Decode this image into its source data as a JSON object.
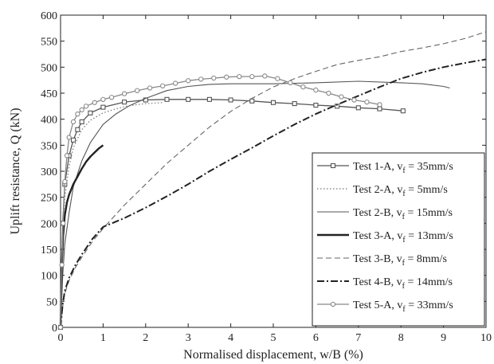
{
  "chart_data": {
    "type": "line",
    "title": "",
    "xlabel": "Normalised displacement, w/B (%)",
    "ylabel": "Uplift resistance, Q (kN)",
    "xlim": [
      0,
      10
    ],
    "ylim": [
      0,
      600
    ],
    "xticks": [
      0,
      1,
      2,
      3,
      4,
      5,
      6,
      7,
      8,
      9,
      10
    ],
    "yticks": [
      0,
      50,
      100,
      150,
      200,
      250,
      300,
      350,
      400,
      450,
      500,
      550,
      600
    ],
    "grid": false,
    "legend_position": "bottom-right",
    "series": [
      {
        "name": "Test 1-A, v",
        "sub": "f",
        "rest": " = 35mm/s",
        "style": "solid-square",
        "color": "#555555",
        "x": [
          0,
          0.05,
          0.1,
          0.2,
          0.3,
          0.4,
          0.5,
          0.7,
          1.0,
          1.5,
          2.0,
          2.5,
          3.0,
          3.5,
          4.0,
          4.5,
          5.0,
          5.5,
          6.0,
          6.5,
          7.0,
          7.5,
          8.05
        ],
        "y": [
          0,
          200,
          275,
          330,
          360,
          380,
          395,
          412,
          423,
          433,
          437,
          438,
          438,
          438,
          437,
          435,
          432,
          430,
          427,
          425,
          422,
          420,
          416
        ]
      },
      {
        "name": "Test 2-A, v",
        "sub": "f",
        "rest": " = 5mm/s",
        "style": "dotted",
        "color": "#777777",
        "x": [
          0,
          0.05,
          0.1,
          0.2,
          0.3,
          0.5,
          0.7,
          1.0,
          1.3,
          1.6,
          2.0,
          2.4
        ],
        "y": [
          0,
          170,
          250,
          310,
          345,
          380,
          398,
          412,
          420,
          426,
          430,
          432
        ]
      },
      {
        "name": "Test 2-B, v",
        "sub": "f",
        "rest": " = 15mm/s",
        "style": "solid-thin",
        "color": "#555555",
        "x": [
          0,
          0.05,
          0.1,
          0.2,
          0.3,
          0.5,
          0.7,
          1.0,
          1.3,
          1.6,
          2.0,
          2.5,
          3.0,
          3.5,
          4.0,
          5.0,
          6.0,
          7.0,
          8.0,
          8.5,
          9.0,
          9.15
        ],
        "y": [
          0,
          100,
          160,
          220,
          270,
          320,
          355,
          390,
          410,
          425,
          440,
          455,
          463,
          467,
          468,
          468,
          470,
          473,
          470,
          468,
          463,
          460
        ]
      },
      {
        "name": "Test 3-A, v",
        "sub": "f",
        "rest": " = 13mm/s",
        "style": "solid-thick",
        "color": "#222222",
        "x": [
          0,
          0.03,
          0.06,
          0.1,
          0.15,
          0.2,
          0.3,
          0.4,
          0.5,
          0.6,
          0.7,
          0.8,
          0.9,
          1.0
        ],
        "y": [
          0,
          120,
          175,
          215,
          240,
          255,
          275,
          290,
          305,
          318,
          328,
          336,
          344,
          350
        ]
      },
      {
        "name": "Test 3-B, v",
        "sub": "f",
        "rest": " = 8mm/s",
        "style": "dashed",
        "color": "#666666",
        "x": [
          0,
          0.05,
          0.1,
          0.2,
          0.35,
          0.5,
          0.75,
          1.0,
          1.5,
          2.0,
          2.5,
          3.0,
          3.5,
          4.0,
          4.5,
          5.0,
          5.5,
          6.0,
          6.5,
          7.0,
          7.5,
          8.0,
          8.5,
          9.0,
          9.5,
          10.0
        ],
        "y": [
          0,
          40,
          65,
          90,
          115,
          135,
          165,
          190,
          235,
          275,
          315,
          350,
          385,
          415,
          440,
          462,
          478,
          492,
          505,
          513,
          520,
          530,
          537,
          545,
          555,
          568
        ]
      },
      {
        "name": "Test 4-B, v",
        "sub": "f",
        "rest": " = 14mm/s",
        "style": "dash-dot",
        "color": "#222222",
        "x": [
          0,
          0.05,
          0.1,
          0.2,
          0.35,
          0.5,
          0.75,
          1.0,
          1.5,
          2.0,
          2.5,
          3.0,
          3.5,
          4.0,
          4.5,
          5.0,
          5.5,
          6.0,
          6.5,
          7.0,
          7.5,
          8.0,
          8.5,
          9.0,
          9.5,
          10.0
        ],
        "y": [
          0,
          45,
          70,
          95,
          120,
          140,
          170,
          193,
          210,
          230,
          252,
          275,
          300,
          323,
          345,
          368,
          390,
          410,
          428,
          445,
          462,
          478,
          490,
          500,
          508,
          515
        ]
      },
      {
        "name": "Test 5-A, v",
        "sub": "f",
        "rest": " = 33mm/s",
        "style": "solid-circle",
        "color": "#888888",
        "x": [
          0,
          0.03,
          0.06,
          0.1,
          0.15,
          0.2,
          0.3,
          0.4,
          0.5,
          0.6,
          0.8,
          1.0,
          1.2,
          1.5,
          1.8,
          2.1,
          2.4,
          2.7,
          3.0,
          3.3,
          3.6,
          3.9,
          4.2,
          4.5,
          4.8,
          5.1,
          5.4,
          5.7,
          6.0,
          6.3,
          6.6,
          6.9,
          7.2,
          7.5
        ],
        "y": [
          0,
          120,
          200,
          280,
          330,
          365,
          395,
          410,
          418,
          425,
          432,
          438,
          442,
          449,
          455,
          460,
          464,
          469,
          474,
          477,
          479,
          481,
          482,
          482,
          483,
          478,
          470,
          462,
          456,
          450,
          443,
          437,
          433,
          428
        ]
      }
    ]
  }
}
